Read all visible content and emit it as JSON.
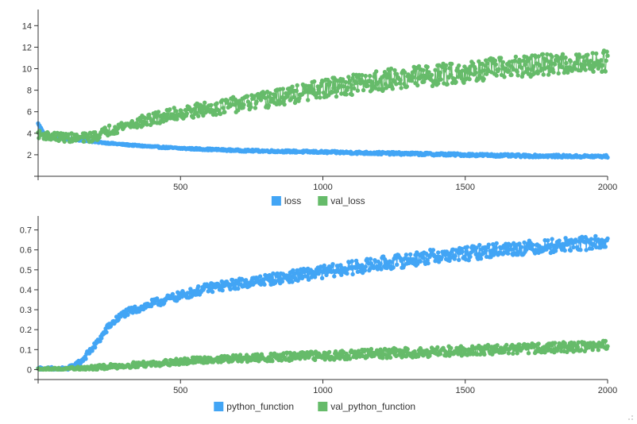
{
  "chart_data": [
    {
      "type": "line",
      "subtype": "line-with-markers",
      "xlim": [
        0,
        2000
      ],
      "ylim": [
        0,
        15.5
      ],
      "x_ticks": [
        500,
        1000,
        1500,
        2000
      ],
      "x_tick_labels": [
        "500",
        "1000",
        "1500",
        "2000"
      ],
      "y_ticks": [
        2,
        4,
        6,
        8,
        10,
        12,
        14
      ],
      "y_tick_labels": [
        "2",
        "4",
        "6",
        "8",
        "10",
        "12",
        "14"
      ],
      "grid": false,
      "legend_position": "bottom-center",
      "series": [
        {
          "name": "loss",
          "color": "#42a5f5",
          "x": [
            0,
            25,
            50,
            100,
            150,
            200,
            300,
            400,
            500,
            600,
            700,
            800,
            900,
            1000,
            1100,
            1200,
            1300,
            1400,
            1500,
            1600,
            1700,
            1800,
            1900,
            2000
          ],
          "values": [
            4.9,
            3.8,
            3.6,
            3.45,
            3.35,
            3.2,
            2.95,
            2.75,
            2.6,
            2.5,
            2.4,
            2.35,
            2.3,
            2.25,
            2.2,
            2.15,
            2.1,
            2.05,
            2.0,
            1.95,
            1.9,
            1.88,
            1.85,
            1.85
          ],
          "noise": 0.12
        },
        {
          "name": "val_loss",
          "color": "#66bb6a",
          "x": [
            0,
            50,
            100,
            150,
            200,
            250,
            300,
            400,
            500,
            600,
            700,
            800,
            900,
            1000,
            1100,
            1200,
            1300,
            1400,
            1500,
            1600,
            1700,
            1800,
            1900,
            2000
          ],
          "values": [
            3.9,
            3.7,
            3.6,
            3.55,
            3.7,
            4.3,
            4.7,
            5.3,
            5.9,
            6.3,
            6.7,
            7.1,
            7.6,
            8.1,
            8.5,
            8.9,
            9.2,
            9.4,
            9.7,
            10.0,
            10.2,
            10.4,
            10.6,
            10.7
          ],
          "noise": 1.0
        }
      ]
    },
    {
      "type": "line",
      "subtype": "line-with-markers",
      "xlim": [
        0,
        2000
      ],
      "ylim": [
        -0.05,
        0.77
      ],
      "x_ticks": [
        500,
        1000,
        1500,
        2000
      ],
      "x_tick_labels": [
        "500",
        "1000",
        "1500",
        "2000"
      ],
      "y_ticks": [
        0,
        0.1,
        0.2,
        0.3,
        0.4,
        0.5,
        0.6,
        0.7
      ],
      "y_tick_labels": [
        "0",
        "0.1",
        "0.2",
        "0.3",
        "0.4",
        "0.5",
        "0.6",
        "0.7"
      ],
      "grid": false,
      "legend_position": "bottom-center",
      "series": [
        {
          "name": "python_function",
          "color": "#42a5f5",
          "x": [
            0,
            50,
            100,
            120,
            150,
            200,
            250,
            300,
            400,
            500,
            600,
            700,
            800,
            900,
            1000,
            1100,
            1200,
            1300,
            1400,
            1500,
            1600,
            1700,
            1800,
            1900,
            2000
          ],
          "values": [
            0.0,
            0.0,
            0.0,
            0.01,
            0.04,
            0.12,
            0.22,
            0.28,
            0.33,
            0.37,
            0.41,
            0.43,
            0.45,
            0.47,
            0.49,
            0.51,
            0.53,
            0.55,
            0.57,
            0.58,
            0.6,
            0.61,
            0.62,
            0.63,
            0.64
          ],
          "noise": 0.035
        },
        {
          "name": "val_python_function",
          "color": "#66bb6a",
          "x": [
            0,
            100,
            200,
            300,
            400,
            500,
            600,
            700,
            800,
            900,
            1000,
            1100,
            1200,
            1300,
            1400,
            1500,
            1600,
            1700,
            1800,
            1900,
            2000
          ],
          "values": [
            0.0,
            0.0,
            0.01,
            0.02,
            0.03,
            0.04,
            0.05,
            0.055,
            0.06,
            0.065,
            0.07,
            0.075,
            0.08,
            0.085,
            0.09,
            0.095,
            0.1,
            0.105,
            0.11,
            0.115,
            0.12
          ],
          "noise": 0.025
        }
      ]
    }
  ]
}
